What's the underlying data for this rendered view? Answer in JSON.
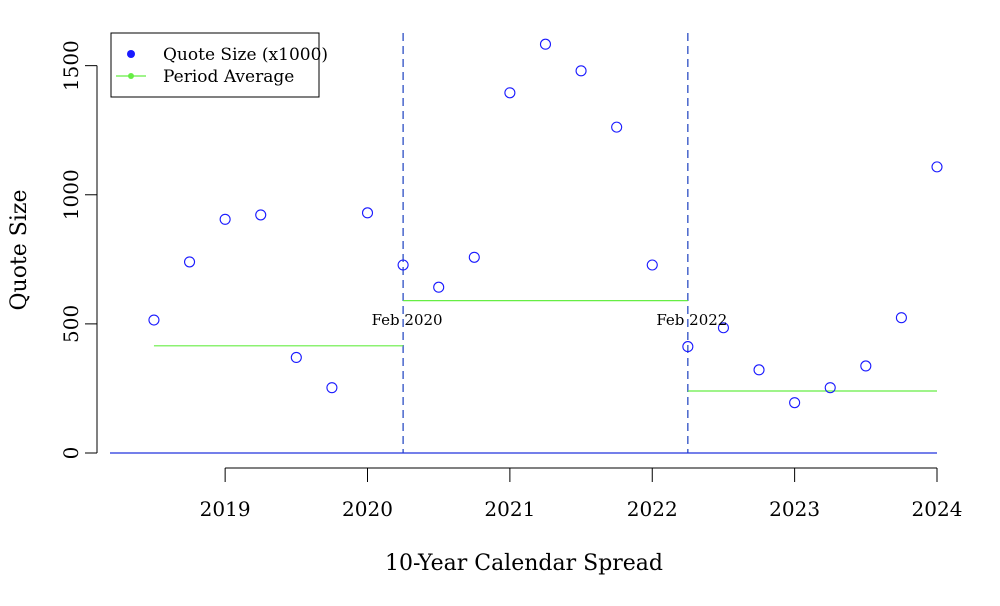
{
  "chart_data": {
    "type": "scatter",
    "title": "",
    "xlabel": "10-Year Calendar Spread",
    "ylabel": "Quote Size",
    "xlim": [
      2018.1,
      2024.0
    ],
    "ylim": [
      0,
      1580
    ],
    "x_ticks": [
      2019,
      2020,
      2021,
      2022,
      2023,
      2024
    ],
    "y_ticks": [
      0,
      500,
      1000,
      1500
    ],
    "grid": false,
    "legend_position": "top-left",
    "zero_line": 0,
    "series": [
      {
        "name": "Quote Size (x1000)",
        "color": "#1a1aff",
        "marker": "open-circle",
        "points": [
          {
            "x": 2018.5,
            "y": 515
          },
          {
            "x": 2018.75,
            "y": 740
          },
          {
            "x": 2019.0,
            "y": 905
          },
          {
            "x": 2019.25,
            "y": 922
          },
          {
            "x": 2019.5,
            "y": 370
          },
          {
            "x": 2019.75,
            "y": 253
          },
          {
            "x": 2020.0,
            "y": 930
          },
          {
            "x": 2020.25,
            "y": 728
          },
          {
            "x": 2020.5,
            "y": 642
          },
          {
            "x": 2020.75,
            "y": 758
          },
          {
            "x": 2021.0,
            "y": 1395
          },
          {
            "x": 2021.25,
            "y": 1583
          },
          {
            "x": 2021.5,
            "y": 1480
          },
          {
            "x": 2021.75,
            "y": 1262
          },
          {
            "x": 2022.0,
            "y": 728
          },
          {
            "x": 2022.25,
            "y": 412
          },
          {
            "x": 2022.5,
            "y": 485
          },
          {
            "x": 2022.75,
            "y": 322
          },
          {
            "x": 2023.0,
            "y": 195
          },
          {
            "x": 2023.25,
            "y": 253
          },
          {
            "x": 2023.5,
            "y": 337
          },
          {
            "x": 2023.75,
            "y": 524
          },
          {
            "x": 2024.0,
            "y": 1108
          }
        ]
      },
      {
        "name": "Period Average",
        "color": "#66ee44",
        "marker": "segment",
        "segments": [
          {
            "x_start": 2018.5,
            "x_end": 2020.25,
            "y": 415
          },
          {
            "x_start": 2020.25,
            "x_end": 2022.25,
            "y": 590
          },
          {
            "x_start": 2022.25,
            "x_end": 2024.0,
            "y": 240
          }
        ]
      }
    ],
    "vlines": [
      {
        "x": 2020.25,
        "label": "Feb 2020",
        "color": "#1a3fbf"
      },
      {
        "x": 2022.25,
        "label": "Feb 2022",
        "color": "#1a3fbf"
      }
    ]
  }
}
